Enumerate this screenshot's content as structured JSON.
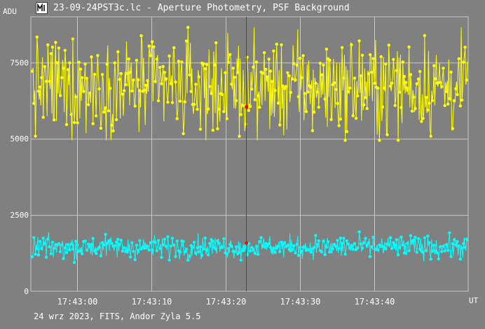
{
  "window": {
    "title": "23-09-24PST3c.lc - Aperture Photometry, PSF Background",
    "icon": "light-curve-app-icon"
  },
  "footer": {
    "info": "24 wrz 2023, FITS, Andor Zyla 5.5"
  },
  "colors": {
    "background": "#808080",
    "grid": "#c8c8c8",
    "series_target": "#ffff00",
    "series_background": "#00ffff",
    "cursor": "#ff0000"
  },
  "chart_data": {
    "type": "line",
    "xlabel": "UT",
    "ylabel": "ADU",
    "ylim": [
      0,
      9000
    ],
    "xlim_seconds": [
      -6.2,
      52.6
    ],
    "x_ticks": [
      "17:43:00",
      "17:43:10",
      "17:43:20",
      "17:43:30",
      "17:43:40"
    ],
    "x_tick_seconds": [
      0,
      10,
      20,
      30,
      40
    ],
    "y_ticks": [
      0,
      2500,
      5000,
      7500
    ],
    "grid": true,
    "cursor": {
      "x_seconds": 22.7,
      "values": [
        6050,
        1580
      ]
    },
    "series": [
      {
        "role": "target",
        "mean": 6700,
        "min": 4950,
        "max": 8650,
        "x_start_seconds": -6.0,
        "x_end_seconds": 52.5,
        "points": 560
      },
      {
        "role": "background",
        "mean": 1450,
        "min": 800,
        "max": 2100,
        "x_start_seconds": -6.0,
        "x_end_seconds": 52.5,
        "points": 560
      }
    ]
  }
}
